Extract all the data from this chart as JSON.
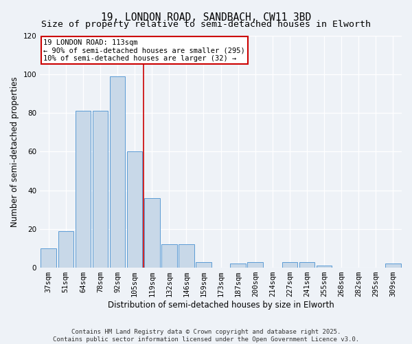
{
  "title_line1": "19, LONDON ROAD, SANDBACH, CW11 3BD",
  "title_line2": "Size of property relative to semi-detached houses in Elworth",
  "xlabel": "Distribution of semi-detached houses by size in Elworth",
  "ylabel": "Number of semi-detached properties",
  "categories": [
    "37sqm",
    "51sqm",
    "64sqm",
    "78sqm",
    "92sqm",
    "105sqm",
    "119sqm",
    "132sqm",
    "146sqm",
    "159sqm",
    "173sqm",
    "187sqm",
    "200sqm",
    "214sqm",
    "227sqm",
    "241sqm",
    "255sqm",
    "268sqm",
    "282sqm",
    "295sqm",
    "309sqm"
  ],
  "values": [
    10,
    19,
    81,
    81,
    99,
    60,
    36,
    12,
    12,
    3,
    0,
    2,
    3,
    0,
    3,
    3,
    1,
    0,
    0,
    0,
    2
  ],
  "bar_color": "#c8d8e8",
  "bar_edge_color": "#5b9bd5",
  "vline_index": 6,
  "vline_color": "#cc0000",
  "annotation_text": "19 LONDON ROAD: 113sqm\n← 90% of semi-detached houses are smaller (295)\n10% of semi-detached houses are larger (32) →",
  "annotation_box_color": "#cc0000",
  "ylim": [
    0,
    120
  ],
  "yticks": [
    0,
    20,
    40,
    60,
    80,
    100,
    120
  ],
  "background_color": "#eef2f7",
  "footer_text": "Contains HM Land Registry data © Crown copyright and database right 2025.\nContains public sector information licensed under the Open Government Licence v3.0.",
  "title_fontsize": 10.5,
  "subtitle_fontsize": 9.5,
  "axis_label_fontsize": 8.5,
  "tick_fontsize": 7.5,
  "annotation_fontsize": 7.5,
  "footer_fontsize": 6.5
}
